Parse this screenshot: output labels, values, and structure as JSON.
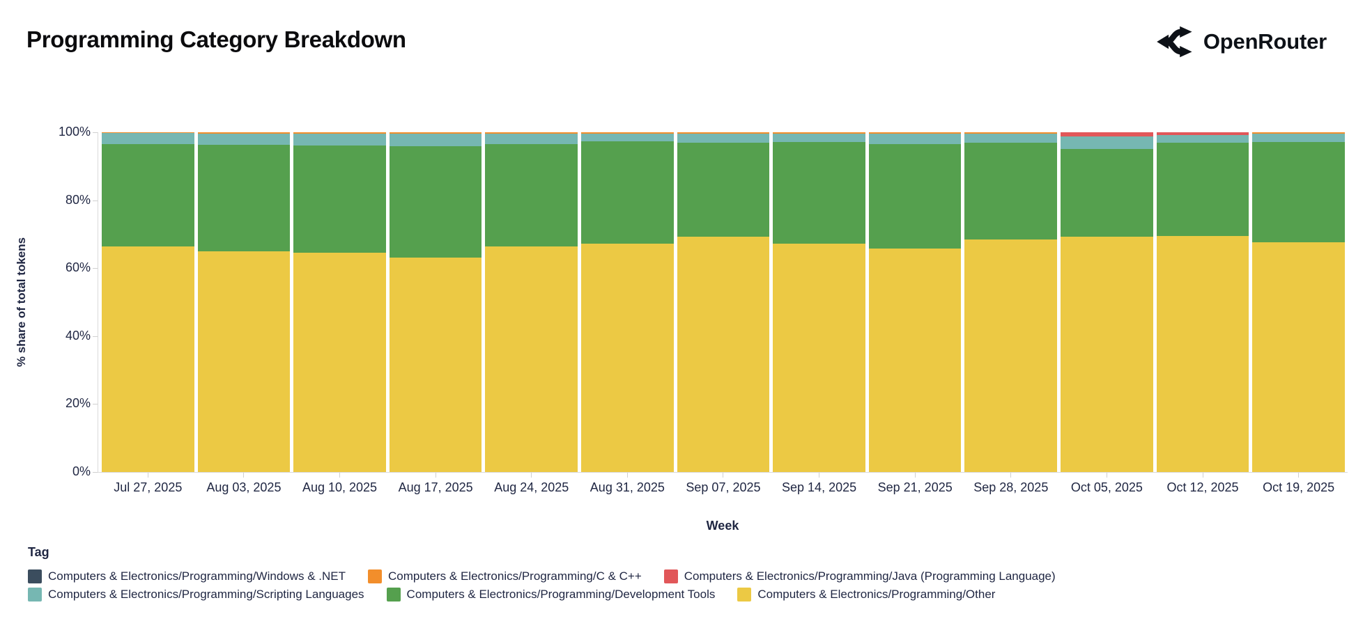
{
  "header": {
    "title": "Programming Category Breakdown",
    "brand": "OpenRouter"
  },
  "chart_data": {
    "type": "bar",
    "variant": "stacked-100-percent",
    "title": "Programming Category Breakdown",
    "xlabel": "Week",
    "ylabel": "% share of total tokens",
    "legend_title": "Tag",
    "ylim": [
      0,
      100
    ],
    "yticks": [
      "0%",
      "20%",
      "40%",
      "60%",
      "80%",
      "100%"
    ],
    "grid": false,
    "legend_position": "bottom",
    "stack_order_top_to_bottom": [
      "Windows & .NET",
      "C & C++",
      "Java (Programming Language)",
      "Scripting Languages",
      "Development Tools",
      "Other"
    ],
    "categories": [
      "Jul 27, 2025",
      "Aug 03, 2025",
      "Aug 10, 2025",
      "Aug 17, 2025",
      "Aug 24, 2025",
      "Aug 31, 2025",
      "Sep 07, 2025",
      "Sep 14, 2025",
      "Sep 21, 2025",
      "Sep 28, 2025",
      "Oct 05, 2025",
      "Oct 12, 2025",
      "Oct 19, 2025"
    ],
    "series": [
      {
        "name": "Computers & Electronics/Programming/Windows & .NET",
        "color": "#3b4d5e",
        "pattern": "dots",
        "values": [
          0.1,
          0.1,
          0.1,
          0.1,
          0.1,
          0.1,
          0.1,
          0.1,
          0.1,
          0.1,
          0.05,
          0.05,
          0.1
        ]
      },
      {
        "name": "Computers & Electronics/Programming/C & C++",
        "color": "#f28e2b",
        "pattern": "solid",
        "values": [
          0.15,
          0.25,
          0.25,
          0.25,
          0.25,
          0.25,
          0.25,
          0.25,
          0.25,
          0.25,
          0.05,
          0.05,
          0.25
        ]
      },
      {
        "name": "Computers & Electronics/Programming/Java (Programming Language)",
        "color": "#e15759",
        "pattern": "solid",
        "values": [
          0,
          0,
          0,
          0,
          0,
          0,
          0,
          0,
          0,
          0,
          1.1,
          0.8,
          0
        ]
      },
      {
        "name": "Computers & Electronics/Programming/Scripting Languages",
        "color": "#76b7b2",
        "pattern": "solid",
        "values": [
          3.25,
          3.35,
          3.45,
          3.85,
          3.15,
          2.35,
          2.75,
          2.45,
          3.15,
          2.75,
          3.8,
          2.1,
          2.45
        ]
      },
      {
        "name": "Computers & Electronics/Programming/Development Tools",
        "color": "#55a04e",
        "pattern": "solid",
        "values": [
          30.2,
          31.3,
          31.7,
          32.6,
          30.2,
          30.0,
          27.7,
          29.9,
          30.7,
          28.5,
          25.7,
          27.6,
          29.5
        ]
      },
      {
        "name": "Computers & Electronics/Programming/Other",
        "color": "#ecc944",
        "pattern": "solid",
        "values": [
          66.3,
          65.0,
          64.5,
          63.2,
          66.3,
          67.3,
          69.2,
          67.3,
          65.8,
          68.4,
          69.3,
          69.4,
          67.7
        ]
      }
    ]
  }
}
